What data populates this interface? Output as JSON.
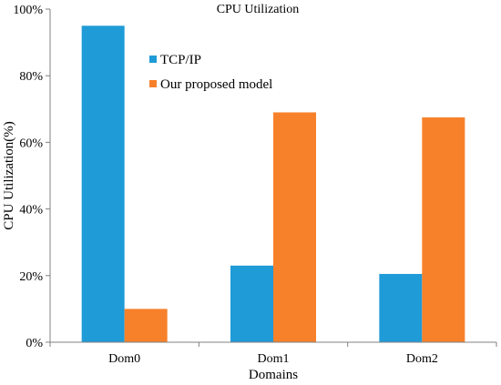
{
  "chart_data": {
    "type": "bar",
    "title": "CPU Utilization",
    "xlabel": "Domains",
    "ylabel": "CPU Utilization(%)",
    "categories": [
      "Dom0",
      "Dom1",
      "Dom2"
    ],
    "ylim": [
      0,
      100
    ],
    "yticks": [
      "0%",
      "20%",
      "40%",
      "60%",
      "80%",
      "100%"
    ],
    "legend_position": "top-left inside plot",
    "grid": false,
    "series": [
      {
        "name": "TCP/IP",
        "color": "#1f9bd7",
        "values": [
          95,
          23,
          20.5
        ]
      },
      {
        "name": "Our proposed model",
        "color": "#f7812a",
        "values": [
          10,
          69,
          67.5
        ]
      }
    ]
  }
}
